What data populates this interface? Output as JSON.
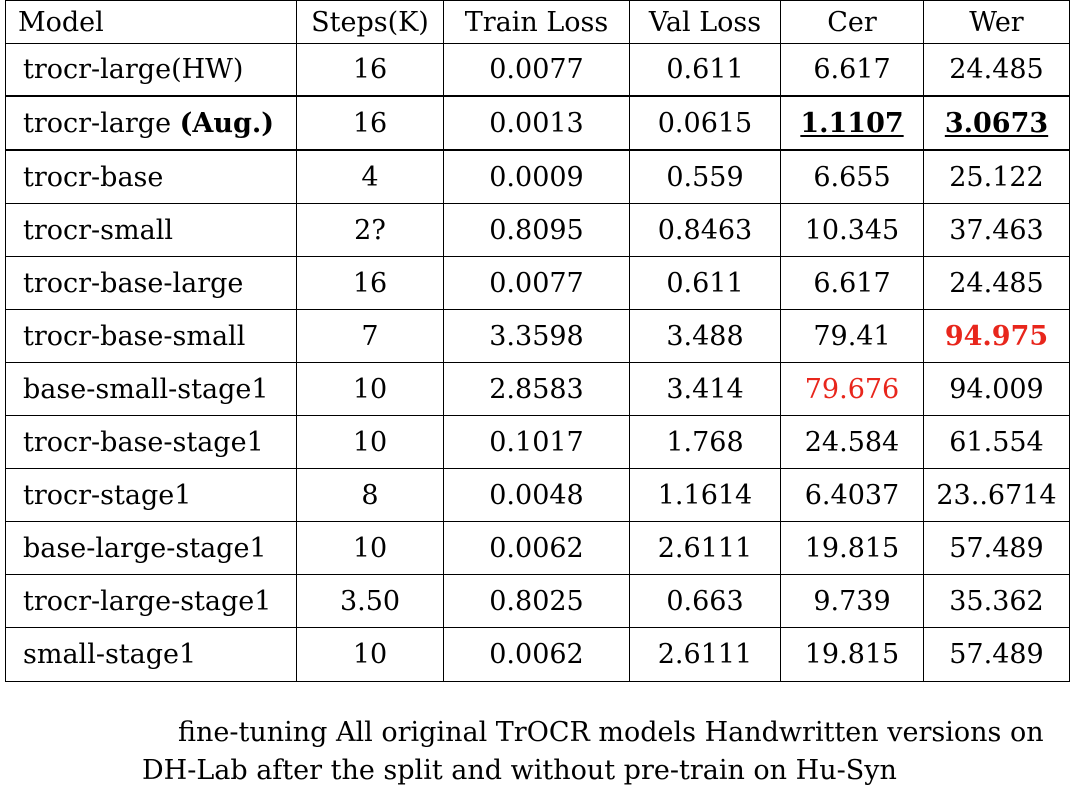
{
  "table": {
    "headers": [
      "Model",
      "Steps(K)",
      "Train Loss",
      "Val Loss",
      "Cer",
      "Wer"
    ],
    "rows": [
      {
        "model": "trocr-large(HW)",
        "model_suffix": "",
        "steps": "16",
        "train_loss": "0.0077",
        "val_loss": "0.611",
        "cer": "6.617",
        "wer": "24.485"
      },
      {
        "model": "trocr-large ",
        "model_suffix": "(Aug.)",
        "steps": "16",
        "train_loss": "0.0013",
        "val_loss": "0.0615",
        "cer": "1.1107",
        "wer": "3.0673"
      },
      {
        "model": "trocr-base",
        "model_suffix": "",
        "steps": "4",
        "train_loss": "0.0009",
        "val_loss": "0.559",
        "cer": "6.655",
        "wer": "25.122"
      },
      {
        "model": "trocr-small",
        "model_suffix": "",
        "steps": "2?",
        "train_loss": "0.8095",
        "val_loss": "0.8463",
        "cer": "10.345",
        "wer": "37.463"
      },
      {
        "model": "trocr-base-large",
        "model_suffix": "",
        "steps": "16",
        "train_loss": "0.0077",
        "val_loss": "0.611",
        "cer": "6.617",
        "wer": "24.485"
      },
      {
        "model": "trocr-base-small",
        "model_suffix": "",
        "steps": "7",
        "train_loss": "3.3598",
        "val_loss": "3.488",
        "cer": "79.41",
        "wer": "94.975"
      },
      {
        "model": "base-small-stage1",
        "model_suffix": "",
        "steps": "10",
        "train_loss": "2.8583",
        "val_loss": "3.414",
        "cer": "79.676",
        "wer": "94.009"
      },
      {
        "model": "trocr-base-stage1",
        "model_suffix": "",
        "steps": "10",
        "train_loss": "0.1017",
        "val_loss": "1.768",
        "cer": "24.584",
        "wer": "61.554"
      },
      {
        "model": "trocr-stage1",
        "model_suffix": "",
        "steps": "8",
        "train_loss": "0.0048",
        "val_loss": "1.1614",
        "cer": "6.4037",
        "wer": "23..6714"
      },
      {
        "model": "base-large-stage1",
        "model_suffix": "",
        "steps": "10",
        "train_loss": "0.0062",
        "val_loss": "2.6111",
        "cer": "19.815",
        "wer": "57.489"
      },
      {
        "model": "trocr-large-stage1",
        "model_suffix": "",
        "steps": "3.50",
        "train_loss": "0.8025",
        "val_loss": "0.663",
        "cer": "9.739",
        "wer": "35.362"
      },
      {
        "model": "small-stage1",
        "model_suffix": "",
        "steps": "10",
        "train_loss": "0.0062",
        "val_loss": "2.6111",
        "cer": "19.815",
        "wer": "57.489"
      }
    ]
  },
  "caption": {
    "line1": "fine-tuning All original TrOCR models Handwritten versions on",
    "line2": "DH-Lab after the split and without pre-train on Hu-Syn"
  },
  "colors": {
    "highlight_red": "#e8261c",
    "text": "#000000",
    "background": "#ffffff"
  }
}
